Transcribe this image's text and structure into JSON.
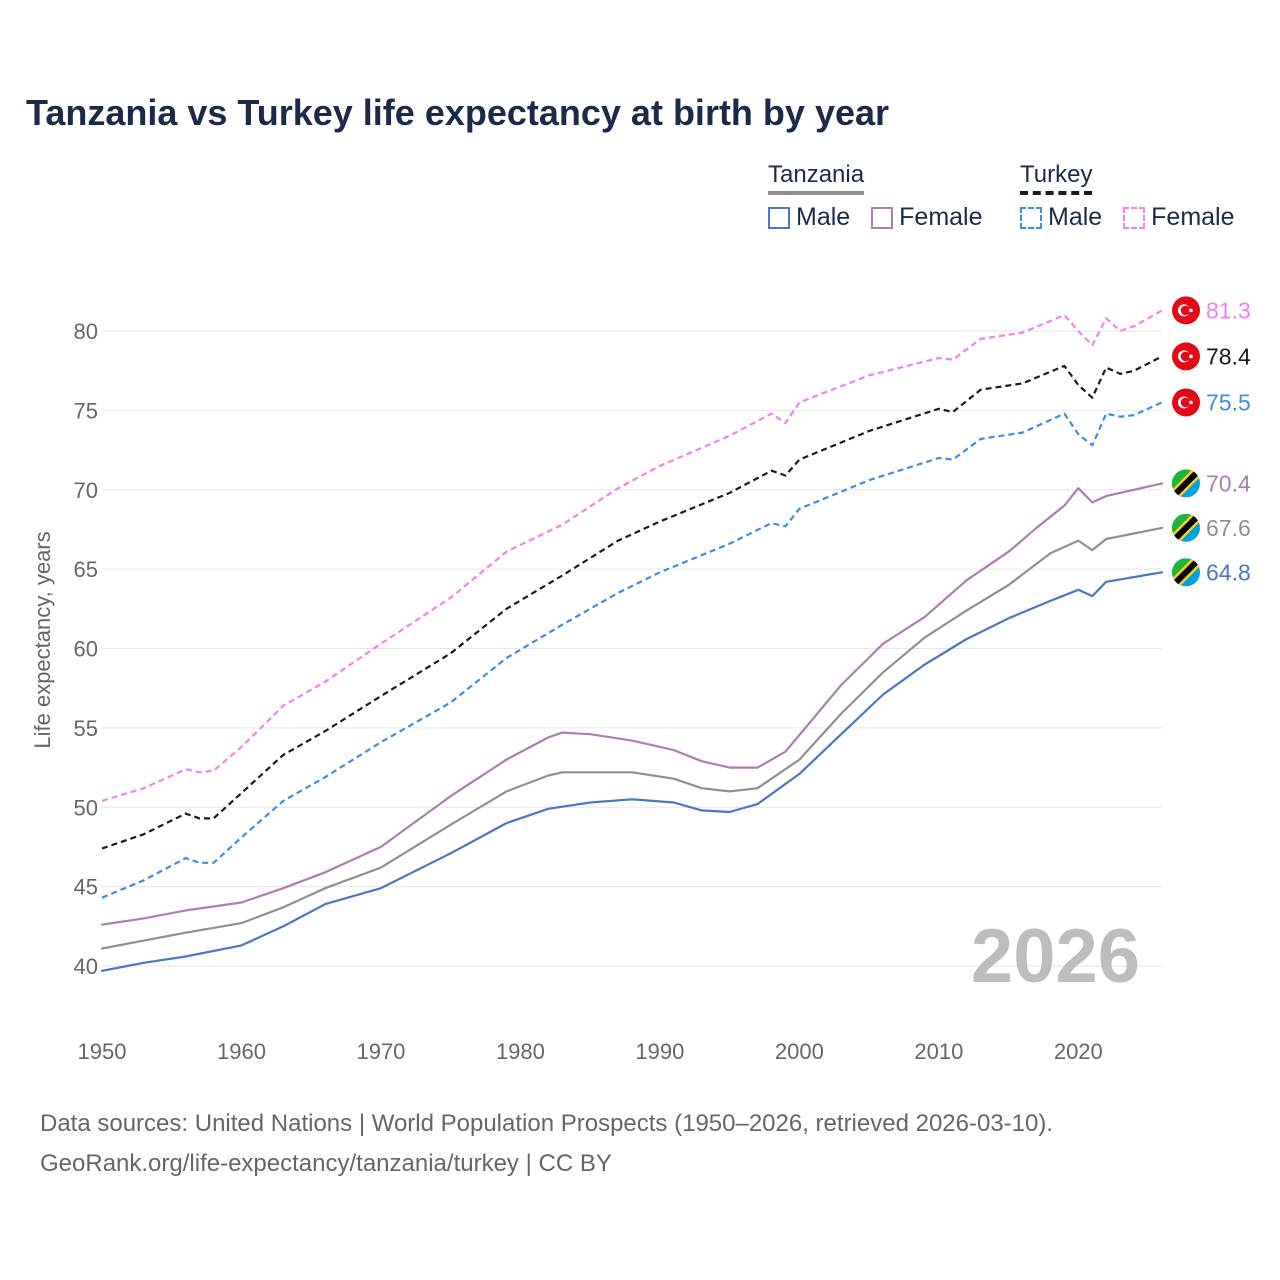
{
  "header": {
    "title": "Tanzania vs Turkey life expectancy at birth by year"
  },
  "legend": {
    "groups": [
      {
        "title": "Tanzania",
        "items": [
          "Male",
          "Female"
        ]
      },
      {
        "title": "Turkey",
        "items": [
          "Male",
          "Female"
        ]
      }
    ]
  },
  "footer": {
    "line1": "Data sources: United Nations | World Population Prospects (1950–2026, retrieved 2026-03-10).",
    "line2": "GeoRank.org/life-expectancy/tanzania/turkey | CC BY"
  },
  "colors": {
    "tanzania_male": "#4a76c4",
    "tanzania_female": "#b07ab6",
    "tanzania_total": "#8f8f8f",
    "turkey_male": "#3d8be8",
    "turkey_female": "#f47ef2",
    "turkey_total": "#1a1a1a",
    "grid": "#e6e6e6",
    "axis_text": "#666666",
    "year_watermark": "#bdbdbd",
    "flag_turkey": "#e30a17",
    "flag_tz_green": "#1eb53a",
    "flag_tz_blue": "#00a3dd",
    "flag_tz_yellow": "#fcd116"
  },
  "chart_data": {
    "type": "line",
    "title": "Tanzania vs Turkey life expectancy at birth by year",
    "xlabel": "",
    "ylabel": "Life expectancy, years",
    "xlim": [
      1950,
      2026
    ],
    "ylim": [
      37,
      83
    ],
    "x_ticks": [
      1950,
      1960,
      1970,
      1980,
      1990,
      2000,
      2010,
      2020
    ],
    "y_ticks": [
      40,
      45,
      50,
      55,
      60,
      65,
      70,
      75,
      80
    ],
    "grid": true,
    "year_label": "2026",
    "series": [
      {
        "name": "Tanzania Male",
        "country": "Tanzania",
        "key": "tanzania_male",
        "dashed": false,
        "end_label": "64.8",
        "x": [
          1950,
          1953,
          1956,
          1960,
          1963,
          1966,
          1970,
          1975,
          1979,
          1982,
          1985,
          1988,
          1991,
          1993,
          1995,
          1997,
          2000,
          2003,
          2006,
          2009,
          2012,
          2015,
          2018,
          2020,
          2021,
          2022,
          2026
        ],
        "values": [
          39.7,
          40.2,
          40.6,
          41.3,
          42.5,
          43.9,
          44.9,
          47.1,
          49.0,
          49.9,
          50.3,
          50.5,
          50.3,
          49.8,
          49.7,
          50.2,
          52.1,
          54.6,
          57.1,
          59.0,
          60.6,
          61.9,
          63.0,
          63.7,
          63.3,
          64.2,
          64.8
        ]
      },
      {
        "name": "Tanzania Female",
        "country": "Tanzania",
        "key": "tanzania_female",
        "dashed": false,
        "end_label": "70.4",
        "x": [
          1950,
          1953,
          1956,
          1960,
          1963,
          1966,
          1970,
          1975,
          1979,
          1982,
          1983,
          1985,
          1988,
          1991,
          1993,
          1995,
          1997,
          1999,
          2001,
          2003,
          2006,
          2009,
          2012,
          2015,
          2017,
          2019,
          2020,
          2021,
          2022,
          2026
        ],
        "values": [
          42.6,
          43.0,
          43.5,
          44.0,
          44.9,
          45.9,
          47.5,
          50.7,
          53.0,
          54.4,
          54.7,
          54.6,
          54.2,
          53.6,
          52.9,
          52.5,
          52.5,
          53.5,
          55.6,
          57.7,
          60.3,
          62.0,
          64.3,
          66.1,
          67.6,
          69.0,
          70.1,
          69.2,
          69.6,
          70.4
        ]
      },
      {
        "name": "Tanzania Total",
        "country": "Tanzania",
        "key": "tanzania_total",
        "dashed": false,
        "end_label": "67.6",
        "x": [
          1950,
          1953,
          1956,
          1960,
          1963,
          1966,
          1970,
          1975,
          1979,
          1982,
          1983,
          1985,
          1988,
          1991,
          1993,
          1995,
          1997,
          2000,
          2003,
          2006,
          2009,
          2012,
          2015,
          2018,
          2020,
          2021,
          2022,
          2026
        ],
        "values": [
          41.1,
          41.6,
          42.1,
          42.7,
          43.7,
          44.9,
          46.2,
          48.9,
          51.0,
          52.0,
          52.2,
          52.2,
          52.2,
          51.8,
          51.2,
          51.0,
          51.2,
          53.0,
          55.9,
          58.5,
          60.7,
          62.4,
          64.0,
          66.0,
          66.8,
          66.2,
          66.9,
          67.6
        ]
      },
      {
        "name": "Turkey Male",
        "country": "Turkey",
        "key": "turkey_male",
        "dashed": true,
        "end_label": "75.5",
        "x": [
          1950,
          1953,
          1956,
          1957,
          1958,
          1960,
          1963,
          1966,
          1970,
          1975,
          1979,
          1983,
          1987,
          1990,
          1995,
          1998,
          1999,
          2000,
          2005,
          2010,
          2011,
          2013,
          2016,
          2019,
          2020,
          2021,
          2022,
          2023,
          2024,
          2026
        ],
        "values": [
          44.3,
          45.4,
          46.8,
          46.5,
          46.5,
          48.1,
          50.4,
          51.9,
          54.1,
          56.6,
          59.4,
          61.5,
          63.5,
          64.8,
          66.6,
          67.9,
          67.7,
          68.8,
          70.6,
          72.0,
          71.9,
          73.2,
          73.6,
          74.8,
          73.5,
          72.8,
          74.8,
          74.6,
          74.7,
          75.5
        ]
      },
      {
        "name": "Turkey Female",
        "country": "Turkey",
        "key": "turkey_female",
        "dashed": true,
        "end_label": "81.3",
        "x": [
          1950,
          1953,
          1956,
          1957,
          1958,
          1960,
          1963,
          1966,
          1970,
          1975,
          1979,
          1983,
          1987,
          1990,
          1995,
          1998,
          1999,
          2000,
          2005,
          2010,
          2011,
          2013,
          2016,
          2019,
          2020,
          2021,
          2022,
          2023,
          2024,
          2026
        ],
        "values": [
          50.4,
          51.2,
          52.4,
          52.2,
          52.3,
          53.8,
          56.4,
          57.9,
          60.3,
          63.2,
          66.1,
          67.8,
          70.1,
          71.5,
          73.4,
          74.8,
          74.2,
          75.5,
          77.2,
          78.3,
          78.2,
          79.5,
          79.9,
          81.0,
          80.0,
          79.1,
          80.8,
          80.0,
          80.3,
          81.3
        ]
      },
      {
        "name": "Turkey Total",
        "country": "Turkey",
        "key": "turkey_total",
        "dashed": true,
        "end_label": "78.4",
        "x": [
          1950,
          1953,
          1956,
          1957,
          1958,
          1960,
          1963,
          1966,
          1970,
          1975,
          1979,
          1983,
          1987,
          1990,
          1995,
          1998,
          1999,
          2000,
          2005,
          2010,
          2011,
          2013,
          2016,
          2019,
          2020,
          2021,
          2022,
          2023,
          2024,
          2026
        ],
        "values": [
          47.4,
          48.3,
          49.6,
          49.3,
          49.3,
          50.9,
          53.3,
          54.8,
          57.0,
          59.7,
          62.5,
          64.6,
          66.8,
          68.0,
          69.8,
          71.2,
          70.9,
          71.9,
          73.7,
          75.1,
          74.9,
          76.3,
          76.7,
          77.8,
          76.6,
          75.8,
          77.7,
          77.3,
          77.5,
          78.4
        ]
      }
    ]
  }
}
